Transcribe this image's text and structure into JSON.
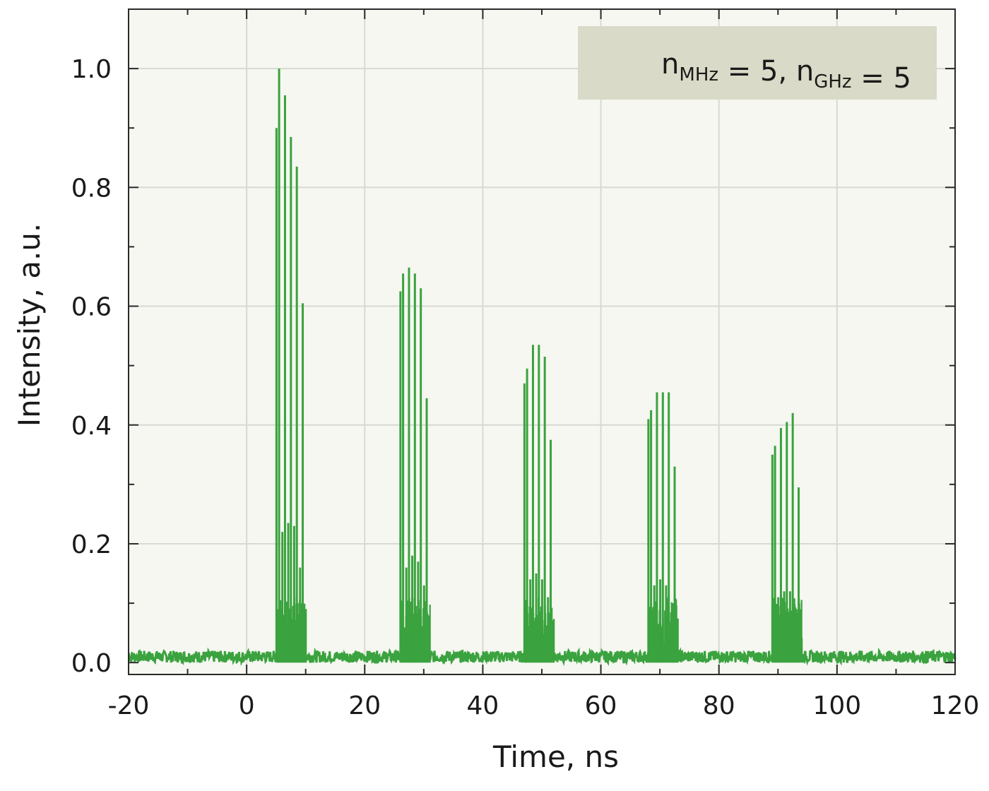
{
  "chart_data": {
    "type": "line",
    "xlabel": "Time, ns",
    "ylabel": "Intensity, a.u.",
    "xlim": [
      -20,
      120
    ],
    "ylim": [
      -0.02,
      1.1
    ],
    "x_ticks": [
      -20,
      0,
      20,
      40,
      60,
      80,
      100,
      120
    ],
    "x_tick_labels": [
      "-20",
      "0",
      "20",
      "40",
      "60",
      "80",
      "100",
      "120"
    ],
    "y_ticks": [
      0.0,
      0.2,
      0.4,
      0.6,
      0.8,
      1.0
    ],
    "y_tick_labels": [
      "0.0",
      "0.2",
      "0.4",
      "0.6",
      "0.8",
      "1.0"
    ],
    "grid": true,
    "annotation": {
      "parts": [
        {
          "text": "n",
          "sub": "MHz"
        },
        {
          "text": " = 5, "
        },
        {
          "text": "n",
          "sub": "GHz"
        },
        {
          "text": " = 5"
        }
      ],
      "position": "top-right"
    },
    "series": [
      {
        "color": "#3aa23e",
        "noise_floor": 0.02,
        "bursts": [
          {
            "x": [
              5.5,
              6.5,
              7.5,
              8.5,
              9.5
            ],
            "peaks": [
              1.0,
              0.955,
              0.885,
              0.835,
              0.605
            ],
            "secondary": [
              0.9,
              0.22,
              0.235,
              0.23,
              0.16
            ]
          },
          {
            "x": [
              26.5,
              27.5,
              28.5,
              29.5,
              30.5
            ],
            "peaks": [
              0.655,
              0.665,
              0.655,
              0.63,
              0.445
            ],
            "secondary": [
              0.625,
              0.16,
              0.18,
              0.17,
              0.13
            ]
          },
          {
            "x": [
              47.5,
              48.5,
              49.5,
              50.5,
              51.5
            ],
            "peaks": [
              0.495,
              0.535,
              0.535,
              0.515,
              0.375
            ],
            "secondary": [
              0.47,
              0.14,
              0.15,
              0.14,
              0.11
            ]
          },
          {
            "x": [
              68.5,
              69.5,
              70.5,
              71.5,
              72.5
            ],
            "peaks": [
              0.425,
              0.455,
              0.455,
              0.455,
              0.33
            ],
            "secondary": [
              0.41,
              0.13,
              0.14,
              0.13,
              0.1
            ]
          },
          {
            "x": [
              89.5,
              90.5,
              91.5,
              92.5,
              93.5
            ],
            "peaks": [
              0.365,
              0.395,
              0.405,
              0.42,
              0.295
            ],
            "secondary": [
              0.35,
              0.11,
              0.12,
              0.12,
              0.09
            ]
          }
        ]
      }
    ]
  },
  "colors": {
    "plot_background": "#f6f7f1",
    "grid": "#d7d9d2",
    "legend_background": "#d9dac7",
    "series": "#3aa23e"
  }
}
